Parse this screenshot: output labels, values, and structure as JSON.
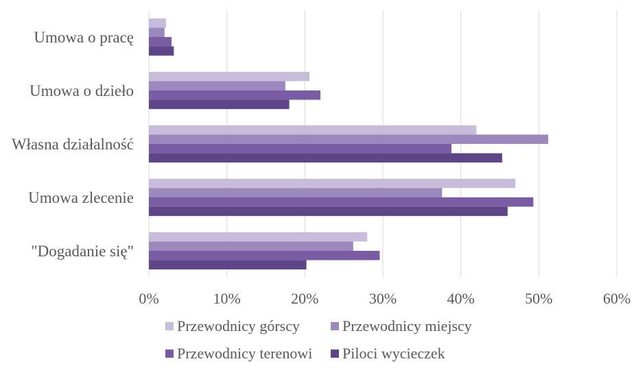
{
  "chart_data": {
    "type": "bar",
    "orientation": "horizontal",
    "title": "",
    "xlabel": "",
    "ylabel": "",
    "categories": [
      "Umowa o pracę",
      "Umowa o dzieło",
      "Własna działalność",
      "Umowa zlecenie",
      "\"Dogadanie się\""
    ],
    "x_ticks": [
      "0%",
      "10%",
      "20%",
      "30%",
      "40%",
      "50%",
      "60%"
    ],
    "xlim": [
      0,
      60
    ],
    "grid": "vertical",
    "legend_position": "bottom",
    "series": [
      {
        "name": "Przewodnicy górscy",
        "color": "#c7bcd9",
        "values": [
          2.2,
          20.6,
          42.0,
          47.0,
          28.0
        ]
      },
      {
        "name": "Przewodnicy miejscy",
        "color": "#9b88bd",
        "values": [
          2.0,
          17.5,
          51.2,
          37.6,
          26.2
        ]
      },
      {
        "name": "Przewodnicy terenowi",
        "color": "#7a5ca5",
        "values": [
          2.9,
          22.0,
          38.8,
          49.3,
          29.6
        ]
      },
      {
        "name": "Piloci wycieczek",
        "color": "#5e4587",
        "values": [
          3.2,
          18.0,
          45.3,
          46.0,
          20.2
        ]
      }
    ]
  }
}
